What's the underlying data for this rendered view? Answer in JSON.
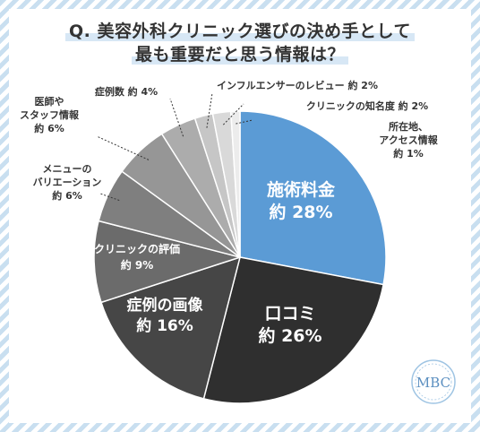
{
  "title": {
    "line1": "Q. 美容外科クリニック選びの決め手として",
    "line2": "最も重要だと思う情報は？"
  },
  "logo": {
    "text": "MBC"
  },
  "chart_data": {
    "type": "pie",
    "start": "12 o'clock, clockwise",
    "slices": [
      {
        "label": "施術料金",
        "value_text": "約 28%",
        "value": 28,
        "color": "#5b9bd5"
      },
      {
        "label": "口コミ",
        "value_text": "約 26%",
        "value": 26,
        "color": "#2f2f2f"
      },
      {
        "label": "症例の画像",
        "value_text": "約 16%",
        "value": 16,
        "color": "#464646"
      },
      {
        "label": "クリニックの評価",
        "value_text": "約 9%",
        "value": 9,
        "color": "#6b6b6b"
      },
      {
        "label": "メニューのバリエーション",
        "label_lines": [
          "メニューの",
          "バリエーション"
        ],
        "value_text": "約 6%",
        "value": 6,
        "color": "#7f7f7f"
      },
      {
        "label": "医師やスタッフ情報",
        "label_lines": [
          "医師や",
          "スタッフ情報"
        ],
        "value_text": "約 6%",
        "value": 6,
        "color": "#969696"
      },
      {
        "label": "症例数",
        "value_text": "約 4%",
        "value": 4,
        "color": "#acacac"
      },
      {
        "label": "インフルエンサーのレビュー",
        "value_text": "約 2%",
        "value": 2,
        "color": "#c6c6c6"
      },
      {
        "label": "クリニックの知名度",
        "value_text": "約 2%",
        "value": 2,
        "color": "#d9d9d9"
      },
      {
        "label": "所在地、アクセス情報",
        "label_lines": [
          "所在地、",
          "アクセス情報"
        ],
        "value_text": "約 1%",
        "value": 1,
        "color": "#ececec"
      }
    ]
  }
}
